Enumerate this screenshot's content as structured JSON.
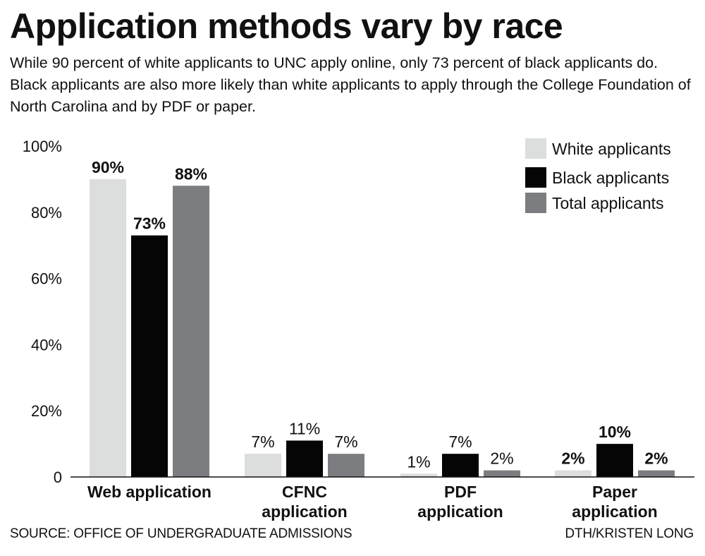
{
  "header": {
    "title": "Application methods vary by race",
    "subtitle": "While 90 percent of white applicants to UNC apply online, only 73 percent of black applicants do. Black applicants are also more likely than white applicants to apply through the College Foundation of North Carolina and by PDF or paper."
  },
  "footer": {
    "source": "SOURCE: OFFICE OF UNDERGRADUATE ADMISSIONS",
    "credit": "DTH/KRISTEN LONG"
  },
  "chart_data": {
    "type": "bar",
    "categories": [
      [
        "Web application"
      ],
      [
        "CFNC",
        "application"
      ],
      [
        "PDF",
        "application"
      ],
      [
        "Paper",
        "application"
      ]
    ],
    "series": [
      {
        "name": "White applicants",
        "values": [
          90,
          7,
          1,
          2
        ],
        "labels": [
          "90%",
          "7%",
          "1%",
          "2%"
        ],
        "color": "#dcdddd"
      },
      {
        "name": "Black applicants",
        "values": [
          73,
          11,
          7,
          10
        ],
        "labels": [
          "73%",
          "11%",
          "7%",
          "10%"
        ],
        "color": "#050505"
      },
      {
        "name": "Total applicants",
        "values": [
          88,
          7,
          2,
          2
        ],
        "labels": [
          "88%",
          "7%",
          "2%",
          "2%"
        ],
        "color": "#7c7d80"
      }
    ],
    "bold_labels": [
      [
        true,
        false,
        false,
        true
      ],
      [
        true,
        false,
        false,
        true
      ],
      [
        true,
        false,
        false,
        true
      ]
    ],
    "y_ticks": [
      "0",
      "20%",
      "40%",
      "60%",
      "80%",
      "100%"
    ],
    "y_tick_values": [
      0,
      20,
      40,
      60,
      80,
      100
    ],
    "ylim": [
      0,
      100
    ],
    "grid": false,
    "legend_position": "top-right"
  }
}
